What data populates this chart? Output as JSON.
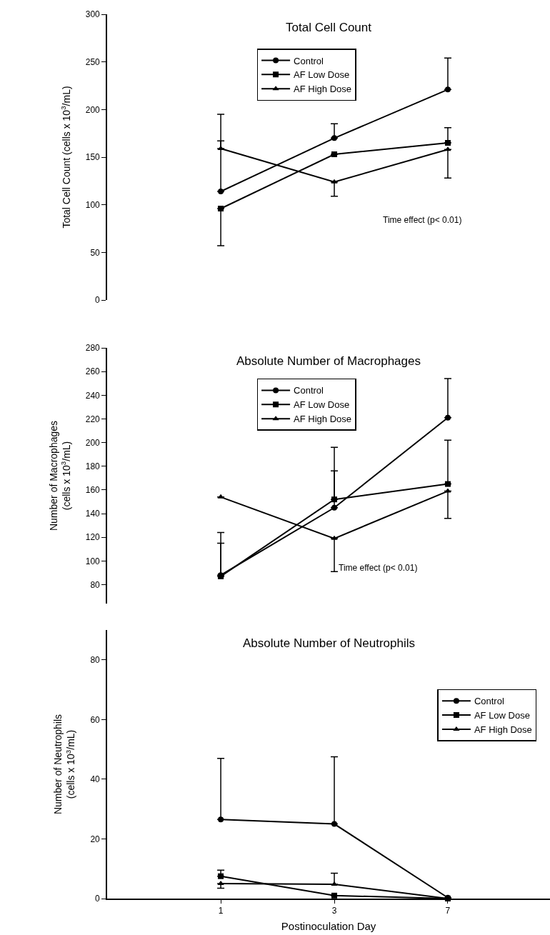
{
  "chart_data": [
    {
      "type": "line",
      "title": "Total Cell Count",
      "ylabel": "Total Cell Count (cells x 10$^{3}$/mL)",
      "categories": [
        "1",
        "3",
        "7"
      ],
      "ylim": [
        0,
        300
      ],
      "yticks": [
        0,
        50,
        100,
        150,
        200,
        250,
        300
      ],
      "tick_labels": "y",
      "legend": "top",
      "annotations": [
        "Time effect (p< 0.01)"
      ],
      "series": [
        {
          "name": "Control",
          "color": "#000000",
          "marker": "circle",
          "values": [
            114,
            170,
            221
          ],
          "errors": [
            [
              114,
              167
            ],
            [
              170,
              185
            ],
            [
              221,
              254
            ]
          ]
        },
        {
          "name": "AF Low Dose",
          "color": "#000000",
          "marker": "square",
          "values": [
            96,
            153,
            165
          ],
          "errors": [
            [
              57,
              96
            ],
            null,
            [
              165,
              181
            ]
          ]
        },
        {
          "name": "AF High Dose",
          "color": "#000000",
          "marker": "triangle",
          "values": [
            159,
            124,
            158
          ],
          "errors": [
            [
              159,
              195
            ],
            [
              109,
              124
            ],
            [
              128,
              158
            ]
          ]
        }
      ]
    },
    {
      "type": "line",
      "title": "Absolute Number of Macrophages",
      "ylabel": "Number of Macrophages\n(cells x 10$^{3}$/mL)",
      "categories": [
        "1",
        "3",
        "7"
      ],
      "ylim": [
        64,
        280
      ],
      "yticks": [
        80,
        100,
        120,
        140,
        160,
        180,
        200,
        220,
        240,
        260,
        280
      ],
      "tick_labels": "y",
      "legend": "top",
      "annotations": [
        "Time effect (p< 0.01)"
      ],
      "series": [
        {
          "name": "Control",
          "color": "#000000",
          "marker": "circle",
          "values": [
            88,
            145,
            221
          ],
          "errors": [
            [
              88,
              115
            ],
            [
              145,
              176
            ],
            [
              221,
              254
            ]
          ]
        },
        {
          "name": "AF Low Dose",
          "color": "#000000",
          "marker": "square",
          "values": [
            87,
            152,
            165
          ],
          "errors": [
            [
              87,
              124
            ],
            [
              152,
              196
            ],
            [
              165,
              202
            ]
          ]
        },
        {
          "name": "AF High Dose",
          "color": "#000000",
          "marker": "triangle",
          "values": [
            154,
            119,
            159
          ],
          "errors": [
            null,
            [
              91,
              119
            ],
            [
              136,
              159
            ]
          ]
        }
      ]
    },
    {
      "type": "line",
      "title": "Absolute Number of Neutrophils",
      "ylabel": "Number of Neutrophils\n(cells x 10$^{3}$/mL)",
      "xlabel": "Postinoculation Day",
      "categories": [
        "1",
        "3",
        "7"
      ],
      "ylim": [
        0,
        90
      ],
      "yticks": [
        0,
        20,
        40,
        60,
        80
      ],
      "legend": "right",
      "series": [
        {
          "name": "Control",
          "color": "#000000",
          "marker": "circle",
          "values": [
            26.5,
            25,
            0.3
          ],
          "errors": [
            [
              26.5,
              47
            ],
            [
              25,
              47.5
            ],
            null
          ]
        },
        {
          "name": "AF Low Dose",
          "color": "#000000",
          "marker": "square",
          "values": [
            7.5,
            1,
            0
          ],
          "errors": [
            [
              7.5,
              9.5
            ],
            null,
            null
          ]
        },
        {
          "name": "AF High Dose",
          "color": "#000000",
          "marker": "triangle",
          "values": [
            5,
            4.8,
            0
          ],
          "errors": [
            [
              3.5,
              5
            ],
            [
              4.8,
              8.5
            ],
            null
          ]
        }
      ]
    }
  ]
}
